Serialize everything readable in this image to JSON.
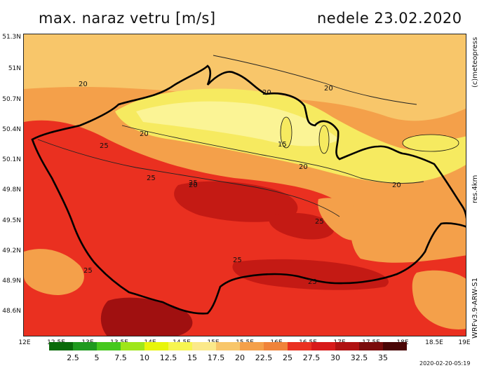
{
  "header": {
    "title": "max. naraz vetru [m/s]",
    "date": "nedele 23.02.2020"
  },
  "side_labels": {
    "copyright": "(c)meteopress",
    "resolution": "res.4km",
    "model": "WRFv3.9-ARW-S1"
  },
  "axes": {
    "lat_ticks": [
      "51.3N",
      "51N",
      "50.7N",
      "50.4N",
      "50.1N",
      "49.8N",
      "49.5N",
      "49.2N",
      "48.9N",
      "48.6N"
    ],
    "lon_ticks": [
      "12E",
      "12.5E",
      "13E",
      "13.5E",
      "14E",
      "14.5E",
      "15E",
      "15.5E",
      "16E",
      "16.5E",
      "17E",
      "17.5E",
      "18E",
      "18.5E",
      "19E"
    ]
  },
  "contour_labels": [
    "20",
    "20",
    "20",
    "20",
    "20",
    "20",
    "20",
    "25",
    "25",
    "25",
    "25",
    "25",
    "25",
    "25",
    "15"
  ],
  "colorbar": {
    "colors": [
      "#0a6a0a",
      "#1f9a1f",
      "#46c81e",
      "#9fe61a",
      "#e8f50a",
      "#f7f550",
      "#fbe98a",
      "#f8c66a",
      "#f4a04a",
      "#f0833a",
      "#ea3020",
      "#d81a1a",
      "#b01212",
      "#7a0c0c",
      "#4a0606"
    ],
    "labels": [
      "2.5",
      "5",
      "7.5",
      "10",
      "12.5",
      "15",
      "17.5",
      "20",
      "22.5",
      "25",
      "27.5",
      "30",
      "32.5",
      "35"
    ]
  },
  "footer": {
    "timestamp": "2020-02-20-05:19"
  }
}
